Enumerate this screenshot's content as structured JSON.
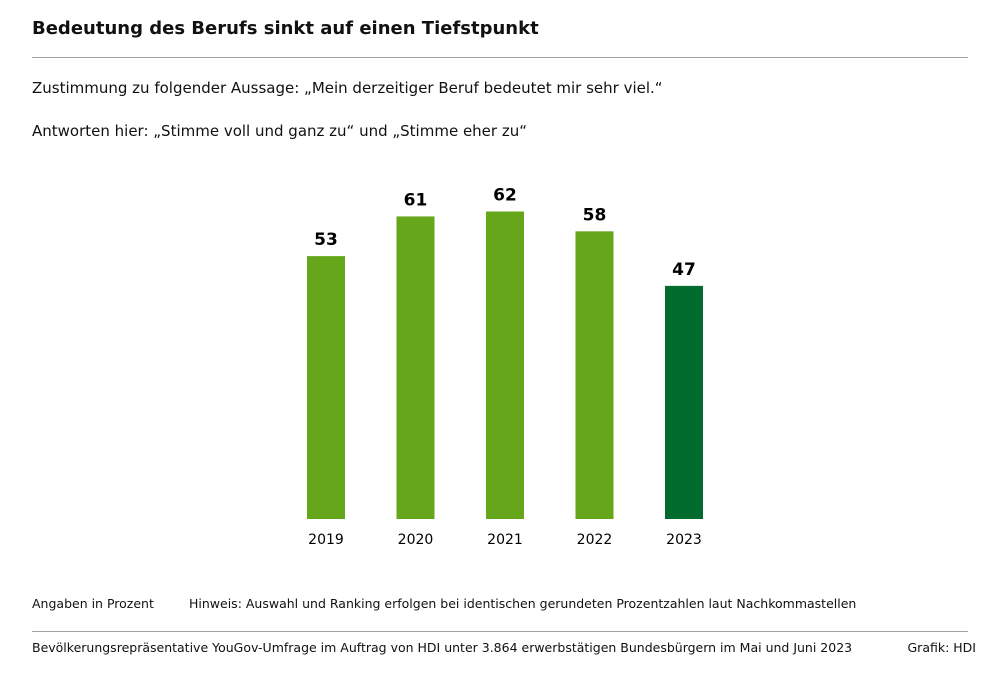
{
  "chart_data": {
    "type": "bar",
    "title": "Bedeutung des Berufs sinkt auf einen Tiefstpunkt",
    "subtitle": "Zustimmung zu folgender Aussage: „Mein derzeitiger Beruf bedeutet mir sehr viel.“",
    "subtitle2": "Antworten hier: „Stimme voll und ganz zu“ und „Stimme eher zu“",
    "categories": [
      "2019",
      "2020",
      "2021",
      "2022",
      "2023"
    ],
    "values": [
      53,
      61,
      62,
      58,
      47
    ],
    "value_labels": [
      "53",
      "61",
      "62",
      "58",
      "47"
    ],
    "colors": [
      "#66a61a",
      "#66a61a",
      "#66a61a",
      "#66a61a",
      "#006b2d"
    ],
    "xlabel": "",
    "ylabel": "",
    "ylim": [
      0,
      65
    ],
    "grid": false
  },
  "footer": {
    "unit_note": "Angaben in Prozent",
    "hint": "Hinweis: Auswahl und Ranking erfolgen bei identischen gerundeten Prozentzahlen laut Nachkommastellen",
    "source": "Bevölkerungsrepräsentative YouGov-Umfrage im Auftrag von HDI unter 3.864 erwerbstätigen Bundesbürgern im Mai und Juni 2023",
    "credit": "Grafik: HDI"
  }
}
